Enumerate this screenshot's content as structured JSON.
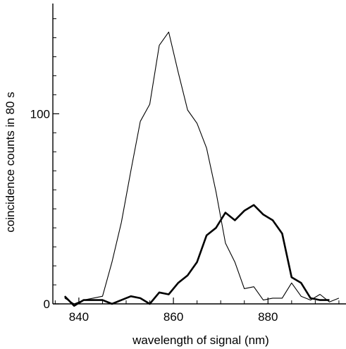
{
  "chart_data": {
    "type": "line",
    "xlabel": "wavelength of signal (nm)",
    "ylabel": "coincidence counts in 80 s",
    "xlim": [
      834.5,
      896.5
    ],
    "ylim": [
      0,
      158
    ],
    "xticks": [
      840,
      860,
      880
    ],
    "xticks_minor": [
      835,
      845,
      850,
      855,
      865,
      870,
      875,
      885,
      890,
      895
    ],
    "yticks": [
      0,
      100
    ],
    "yticks_minor": [
      10,
      20,
      30,
      40,
      50,
      60,
      70,
      80,
      90,
      110,
      120,
      130,
      140,
      150
    ],
    "grid": false,
    "legend": "none",
    "series": [
      {
        "style": "thin",
        "color": "#000000",
        "x": [
          837,
          839,
          841,
          843,
          845,
          847,
          849,
          851,
          853,
          855,
          857,
          859,
          861,
          863,
          865,
          867,
          869,
          871,
          873,
          875,
          877,
          879,
          881,
          883,
          885,
          887,
          889,
          891,
          893,
          895
        ],
        "y": [
          3,
          0,
          2,
          3,
          4,
          22,
          43,
          70,
          96,
          105,
          136,
          143,
          122,
          102,
          95,
          82,
          59,
          32,
          22,
          8,
          9,
          2,
          3,
          3,
          11,
          4,
          2,
          5,
          1,
          3
        ]
      },
      {
        "style": "thick",
        "color": "#000000",
        "x": [
          837,
          839,
          841,
          843,
          845,
          847,
          849,
          851,
          853,
          855,
          857,
          859,
          861,
          863,
          865,
          867,
          869,
          871,
          873,
          875,
          877,
          879,
          881,
          883,
          885,
          887,
          889,
          891,
          893
        ],
        "y": [
          4,
          -1,
          2,
          2,
          2,
          0,
          2,
          4,
          3,
          0,
          6,
          5,
          11,
          15,
          22,
          36,
          40,
          48,
          44,
          49,
          52,
          47,
          44,
          37,
          14,
          11,
          3,
          2,
          2
        ]
      }
    ]
  }
}
